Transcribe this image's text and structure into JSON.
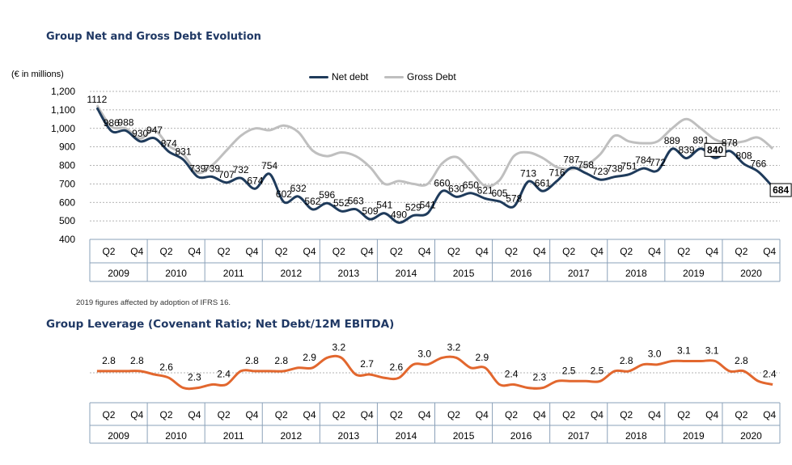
{
  "colors": {
    "net": "#1f3b5b",
    "gross": "#bfbfbf",
    "leverage": "#e2672e",
    "grid": "#9a9a9a",
    "axisBox": "#8aa0b8"
  },
  "top_title": "Group Net and Gross Debt Evolution",
  "unit_label": "(€ in millions)",
  "legend": {
    "net": "Net debt",
    "gross": "Gross Debt"
  },
  "footnote": "2019 figures affected by adoption of IFRS 16.",
  "bottom_title": "Group Leverage (Covenant Ratio; Net Debt/12M EBITDA)",
  "chart_data": [
    {
      "type": "line",
      "title": "Group Net and Gross Debt Evolution",
      "ylabel": "(€ in millions)",
      "ylim": [
        400,
        1200
      ],
      "yticks": [
        "1,200",
        "1,100",
        "1,000",
        "900",
        "800",
        "700",
        "600",
        "500",
        "400"
      ],
      "ytick_values": [
        1200,
        1100,
        1000,
        900,
        800,
        700,
        600,
        500,
        400
      ],
      "grid": true,
      "legend_position": "top",
      "years": [
        "2009",
        "2010",
        "2011",
        "2012",
        "2013",
        "2014",
        "2015",
        "2016",
        "2017",
        "2018",
        "2019",
        "2020"
      ],
      "quarter_ticks": [
        "Q2",
        "Q4"
      ],
      "series": [
        {
          "name": "Net debt",
          "values": [
            1112,
            986,
            988,
            930,
            947,
            874,
            831,
            739,
            739,
            707,
            732,
            674,
            754,
            602,
            632,
            562,
            596,
            552,
            563,
            509,
            541,
            490,
            529,
            541,
            660,
            630,
            650,
            621,
            605,
            578,
            713,
            661,
            716,
            787,
            758,
            723,
            738,
            751,
            784,
            772,
            889,
            839,
            891,
            840,
            878,
            808,
            766,
            684
          ],
          "labels": [
            "1112",
            "986",
            "988",
            "930",
            "947",
            "874",
            "831",
            "739",
            "739",
            "707",
            "732",
            "674",
            "754",
            "602",
            "632",
            "562",
            "596",
            "552",
            "563",
            "509",
            "541",
            "490",
            "529",
            "541",
            "660",
            "630",
            "650",
            "621",
            "605",
            "578",
            "713",
            "661",
            "716",
            "787",
            "758",
            "723",
            "738",
            "751",
            "784",
            "772",
            "889",
            "839",
            "891",
            "840",
            "878",
            "808",
            "766",
            "684"
          ]
        },
        {
          "name": "Gross Debt",
          "values": [
            1125,
            1010,
            1000,
            945,
            990,
            905,
            860,
            760,
            800,
            880,
            960,
            1000,
            990,
            1015,
            980,
            880,
            850,
            870,
            850,
            790,
            700,
            715,
            700,
            700,
            810,
            845,
            770,
            690,
            720,
            850,
            870,
            840,
            790,
            780,
            800,
            860,
            960,
            930,
            920,
            930,
            1000,
            1050,
            1000,
            940,
            920,
            930,
            950,
            890
          ]
        }
      ]
    },
    {
      "type": "line",
      "title": "Group Leverage (Covenant Ratio; Net Debt/12M EBITDA)",
      "years": [
        "2009",
        "2010",
        "2011",
        "2012",
        "2013",
        "2014",
        "2015",
        "2016",
        "2017",
        "2018",
        "2019",
        "2020"
      ],
      "quarter_ticks": [
        "Q2",
        "Q4"
      ],
      "series": [
        {
          "name": "",
          "values": [
            2.8,
            2.8,
            2.8,
            2.8,
            2.7,
            2.6,
            2.3,
            2.3,
            2.4,
            2.4,
            2.8,
            2.8,
            2.8,
            2.8,
            2.9,
            2.9,
            3.2,
            3.2,
            2.7,
            2.7,
            2.6,
            2.6,
            3.0,
            3.0,
            3.2,
            3.2,
            2.9,
            2.9,
            2.4,
            2.4,
            2.3,
            2.3,
            2.5,
            2.5,
            2.5,
            2.5,
            2.8,
            2.8,
            3.0,
            3.0,
            3.1,
            3.1,
            3.1,
            3.1,
            2.8,
            2.8,
            2.5,
            2.4
          ],
          "labels": [
            "2.8",
            "2.8",
            "2.6",
            "2.3",
            "2.4",
            "2.8",
            "2.8",
            "2.9",
            "3.2",
            "2.7",
            "2.6",
            "3.0",
            "3.2",
            "2.9",
            "2.4",
            "2.3",
            "2.5",
            "2.5",
            "2.8",
            "3.0",
            "3.1",
            "3.1",
            "2.8",
            "2.4"
          ]
        }
      ]
    }
  ]
}
